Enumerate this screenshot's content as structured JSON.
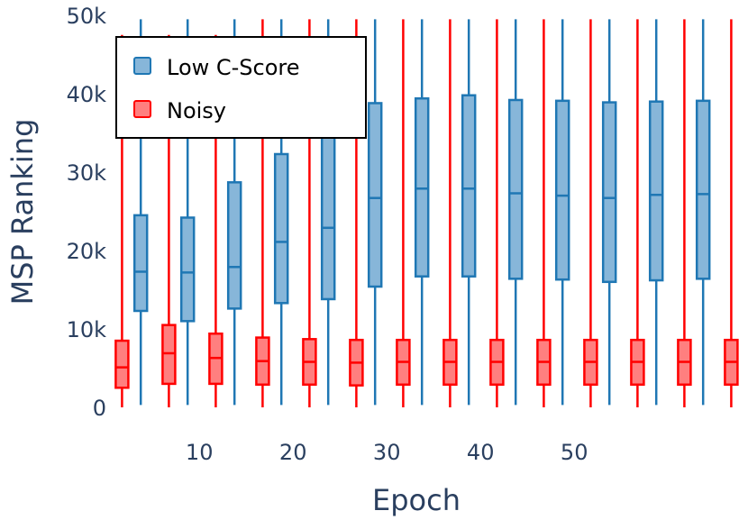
{
  "chart_data": {
    "type": "box",
    "xlabel": "Epoch",
    "ylabel": "MSP Ranking",
    "ylim": [
      0,
      50000
    ],
    "y_ticks": [
      {
        "value": 0,
        "label": "0"
      },
      {
        "value": 10000,
        "label": "10k"
      },
      {
        "value": 20000,
        "label": "20k"
      },
      {
        "value": 30000,
        "label": "30k"
      },
      {
        "value": 40000,
        "label": "40k"
      },
      {
        "value": 50000,
        "label": "50k"
      }
    ],
    "x_range": [
      2,
      58
    ],
    "x_ticks": [
      {
        "value": 10,
        "label": "10"
      },
      {
        "value": 20,
        "label": "20"
      },
      {
        "value": 30,
        "label": "30"
      },
      {
        "value": 40,
        "label": "40"
      },
      {
        "value": 50,
        "label": "50"
      }
    ],
    "legend": {
      "placement": "top-left"
    },
    "series": [
      {
        "name": "Low C-Score",
        "color": "#1f77b4",
        "fill": "#87b6d9",
        "boxes": [
          {
            "x": 5,
            "q1": 12300,
            "median": 17300,
            "q3": 24500,
            "lower": 300,
            "upper": 49500
          },
          {
            "x": 10,
            "q1": 11000,
            "median": 17200,
            "q3": 24200,
            "lower": 300,
            "upper": 49500
          },
          {
            "x": 15,
            "q1": 12600,
            "median": 17900,
            "q3": 28700,
            "lower": 300,
            "upper": 49500
          },
          {
            "x": 20,
            "q1": 13300,
            "median": 21100,
            "q3": 32300,
            "lower": 300,
            "upper": 49500
          },
          {
            "x": 25,
            "q1": 13800,
            "median": 22900,
            "q3": 38500,
            "lower": 300,
            "upper": 49500
          },
          {
            "x": 30,
            "q1": 15400,
            "median": 26700,
            "q3": 38800,
            "lower": 300,
            "upper": 49500
          },
          {
            "x": 35,
            "q1": 16700,
            "median": 27900,
            "q3": 39400,
            "lower": 300,
            "upper": 49500
          },
          {
            "x": 40,
            "q1": 16700,
            "median": 27900,
            "q3": 39800,
            "lower": 300,
            "upper": 49500
          },
          {
            "x": 45,
            "q1": 16400,
            "median": 27300,
            "q3": 39200,
            "lower": 300,
            "upper": 49500
          },
          {
            "x": 50,
            "q1": 16300,
            "median": 27000,
            "q3": 39100,
            "lower": 300,
            "upper": 49500
          },
          {
            "x": 55,
            "q1": 16000,
            "median": 26700,
            "q3": 38900,
            "lower": 300,
            "upper": 49500
          },
          {
            "x": 60,
            "q1": 16200,
            "median": 27100,
            "q3": 39000,
            "lower": 300,
            "upper": 49500
          },
          {
            "x": 65,
            "q1": 16400,
            "median": 27200,
            "q3": 39100,
            "lower": 300,
            "upper": 49500
          },
          {
            "x": 70,
            "q1": 16600,
            "median": 27300,
            "q3": 39200,
            "lower": 300,
            "upper": 49500
          }
        ]
      },
      {
        "name": "Noisy",
        "color": "#ff0000",
        "fill": "#ff7f7f",
        "boxes": [
          {
            "x": 3,
            "q1": 2500,
            "median": 5100,
            "q3": 8500,
            "lower": 0,
            "upper": 47500
          },
          {
            "x": 8,
            "q1": 3000,
            "median": 6900,
            "q3": 10500,
            "lower": 0,
            "upper": 47500
          },
          {
            "x": 13,
            "q1": 3000,
            "median": 6300,
            "q3": 9400,
            "lower": 0,
            "upper": 47500
          },
          {
            "x": 18,
            "q1": 2900,
            "median": 5900,
            "q3": 8900,
            "lower": 0,
            "upper": 49500
          },
          {
            "x": 23,
            "q1": 2900,
            "median": 5800,
            "q3": 8700,
            "lower": 0,
            "upper": 49500
          },
          {
            "x": 28,
            "q1": 2800,
            "median": 5700,
            "q3": 8600,
            "lower": 0,
            "upper": 49500
          },
          {
            "x": 33,
            "q1": 2900,
            "median": 5800,
            "q3": 8600,
            "lower": 0,
            "upper": 49500
          },
          {
            "x": 38,
            "q1": 2900,
            "median": 5800,
            "q3": 8600,
            "lower": 0,
            "upper": 49500
          },
          {
            "x": 43,
            "q1": 2900,
            "median": 5800,
            "q3": 8600,
            "lower": 0,
            "upper": 49500
          },
          {
            "x": 48,
            "q1": 2900,
            "median": 5800,
            "q3": 8600,
            "lower": 0,
            "upper": 49500
          },
          {
            "x": 53,
            "q1": 2900,
            "median": 5800,
            "q3": 8600,
            "lower": 0,
            "upper": 49500
          },
          {
            "x": 58,
            "q1": 2900,
            "median": 5800,
            "q3": 8600,
            "lower": 0,
            "upper": 49500
          },
          {
            "x": 63,
            "q1": 2900,
            "median": 5800,
            "q3": 8600,
            "lower": 0,
            "upper": 49500
          },
          {
            "x": 68,
            "q1": 2900,
            "median": 5800,
            "q3": 8600,
            "lower": 0,
            "upper": 49500
          }
        ]
      }
    ]
  }
}
